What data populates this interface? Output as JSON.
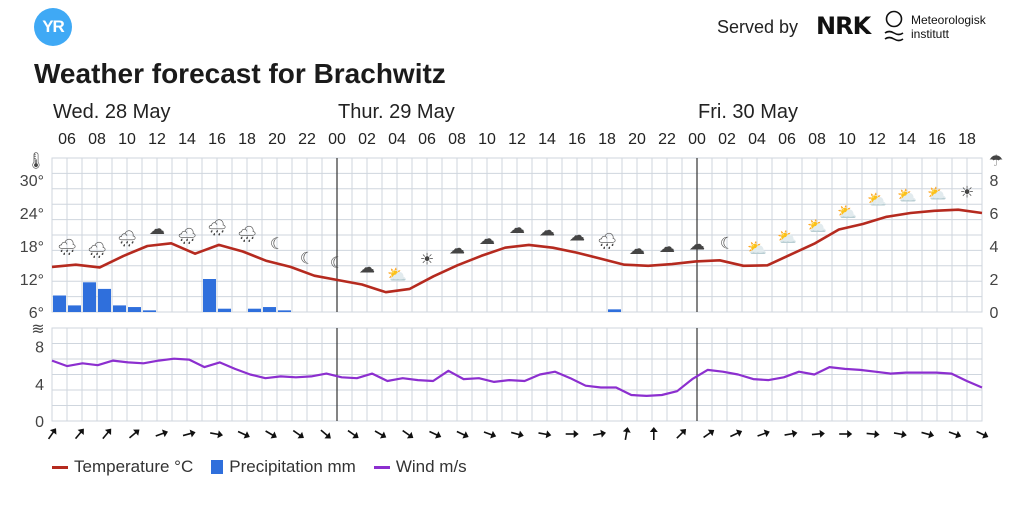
{
  "header": {
    "logo_text": "YR",
    "served_by": "Served by",
    "nrk_text": "NRK",
    "met_line1": "Meteorologisk",
    "met_line2": "institutt"
  },
  "title": "Weather forecast for Brachwitz",
  "legend": {
    "temperature": "Temperature °C",
    "precipitation": "Precipitation mm",
    "wind": "Wind m/s"
  },
  "colors": {
    "temperature": "#b52a1f",
    "precipitation": "#2f6fdc",
    "wind": "#8c2fcf",
    "grid": "#cfd6de",
    "day_line": "#333333"
  },
  "chart_data": {
    "type": "line",
    "days": [
      {
        "label": "Wed. 28 May",
        "start_index": 0
      },
      {
        "label": "Thur. 29 May",
        "start_index": 9
      },
      {
        "label": "Fri. 30 May",
        "start_index": 21
      }
    ],
    "hour_labels": [
      "06",
      "08",
      "10",
      "12",
      "14",
      "16",
      "18",
      "20",
      "22",
      "00",
      "02",
      "04",
      "06",
      "08",
      "10",
      "12",
      "14",
      "16",
      "18",
      "20",
      "22",
      "00",
      "02",
      "04",
      "06",
      "08",
      "10",
      "12",
      "14",
      "16",
      "18"
    ],
    "temp_axis": {
      "ticks": [
        "6°",
        "12°",
        "18°",
        "24°",
        "30°"
      ],
      "ylim": [
        6,
        30
      ]
    },
    "precip_axis": {
      "ticks": [
        "0",
        "2",
        "4",
        "6",
        "8"
      ],
      "ylim": [
        0,
        8
      ]
    },
    "wind_axis": {
      "ticks": [
        "0",
        "4",
        "8"
      ],
      "ylim": [
        0,
        10
      ]
    },
    "temperature": [
      14.2,
      14.6,
      14.1,
      16.2,
      18.0,
      18.5,
      16.6,
      18.2,
      17.0,
      15.3,
      14.2,
      12.6,
      11.8,
      11.0,
      9.6,
      10.2,
      12.5,
      14.5,
      16.2,
      17.7,
      18.2,
      17.7,
      16.8,
      15.7,
      14.6,
      14.4,
      14.7,
      15.2,
      15.4,
      14.4,
      14.5,
      16.5,
      18.5,
      21.0,
      22.0,
      23.3,
      24.0,
      24.4,
      24.6,
      24.0
    ],
    "precipitation": [
      1.0,
      0.4,
      1.8,
      1.4,
      0.4,
      0.3,
      0.1,
      0,
      0,
      2.0,
      0.2,
      0,
      0.2,
      0.3,
      0.1,
      0,
      0,
      0,
      0,
      0,
      0,
      0,
      0,
      0,
      0,
      0,
      0,
      0,
      0,
      0,
      0,
      0,
      0,
      0,
      0,
      0,
      0,
      0,
      0,
      0,
      0,
      0,
      0,
      0,
      0,
      0,
      0,
      0,
      0,
      0,
      0,
      0,
      0,
      0,
      0,
      0,
      0,
      0,
      0,
      0,
      0,
      0
    ],
    "precip_hour_start": 6,
    "extra_precip": [
      {
        "hour": 19,
        "day": 1,
        "value": 0.1
      }
    ],
    "wind": [
      6.5,
      5.9,
      6.2,
      6.0,
      6.5,
      6.3,
      6.2,
      6.5,
      6.7,
      6.6,
      5.8,
      6.3,
      5.6,
      5.0,
      4.6,
      4.8,
      4.7,
      4.8,
      5.1,
      4.7,
      4.6,
      5.1,
      4.3,
      4.6,
      4.4,
      4.3,
      5.4,
      4.5,
      4.6,
      4.2,
      4.4,
      4.3,
      5.0,
      5.3,
      4.6,
      3.8,
      3.6,
      3.6,
      2.8,
      2.7,
      2.8,
      3.2,
      4.5,
      5.5,
      5.3,
      5.0,
      4.5,
      4.4,
      4.7,
      5.3,
      5.0,
      5.8,
      5.6,
      5.5,
      5.3,
      5.1,
      5.2,
      5.2,
      5.2,
      5.1,
      4.3,
      3.6
    ],
    "wind_arrows": [
      35,
      40,
      40,
      50,
      70,
      75,
      100,
      115,
      120,
      125,
      130,
      125,
      120,
      125,
      115,
      115,
      110,
      105,
      100,
      90,
      80,
      10,
      0,
      45,
      55,
      65,
      70,
      80,
      85,
      90,
      95,
      100,
      105,
      110,
      115
    ],
    "weather_icons": [
      "rain-cloud",
      "rain-cloud",
      "rain-cloud",
      "cloud",
      "rain-cloud",
      "rain-cloud",
      "rain-cloud",
      "moon-cloud",
      "moon-cloud",
      "moon-cloud",
      "cloud",
      "sun-cloud",
      "sun",
      "cloud",
      "cloud",
      "cloud",
      "cloud",
      "cloud",
      "rain-cloud",
      "cloud",
      "cloud",
      "cloud",
      "moon-cloud",
      "sun-cloud",
      "sun-cloud",
      "sun-cloud",
      "sun-cloud",
      "sun-cloud",
      "sun-cloud",
      "sun-cloud",
      "sun"
    ]
  }
}
